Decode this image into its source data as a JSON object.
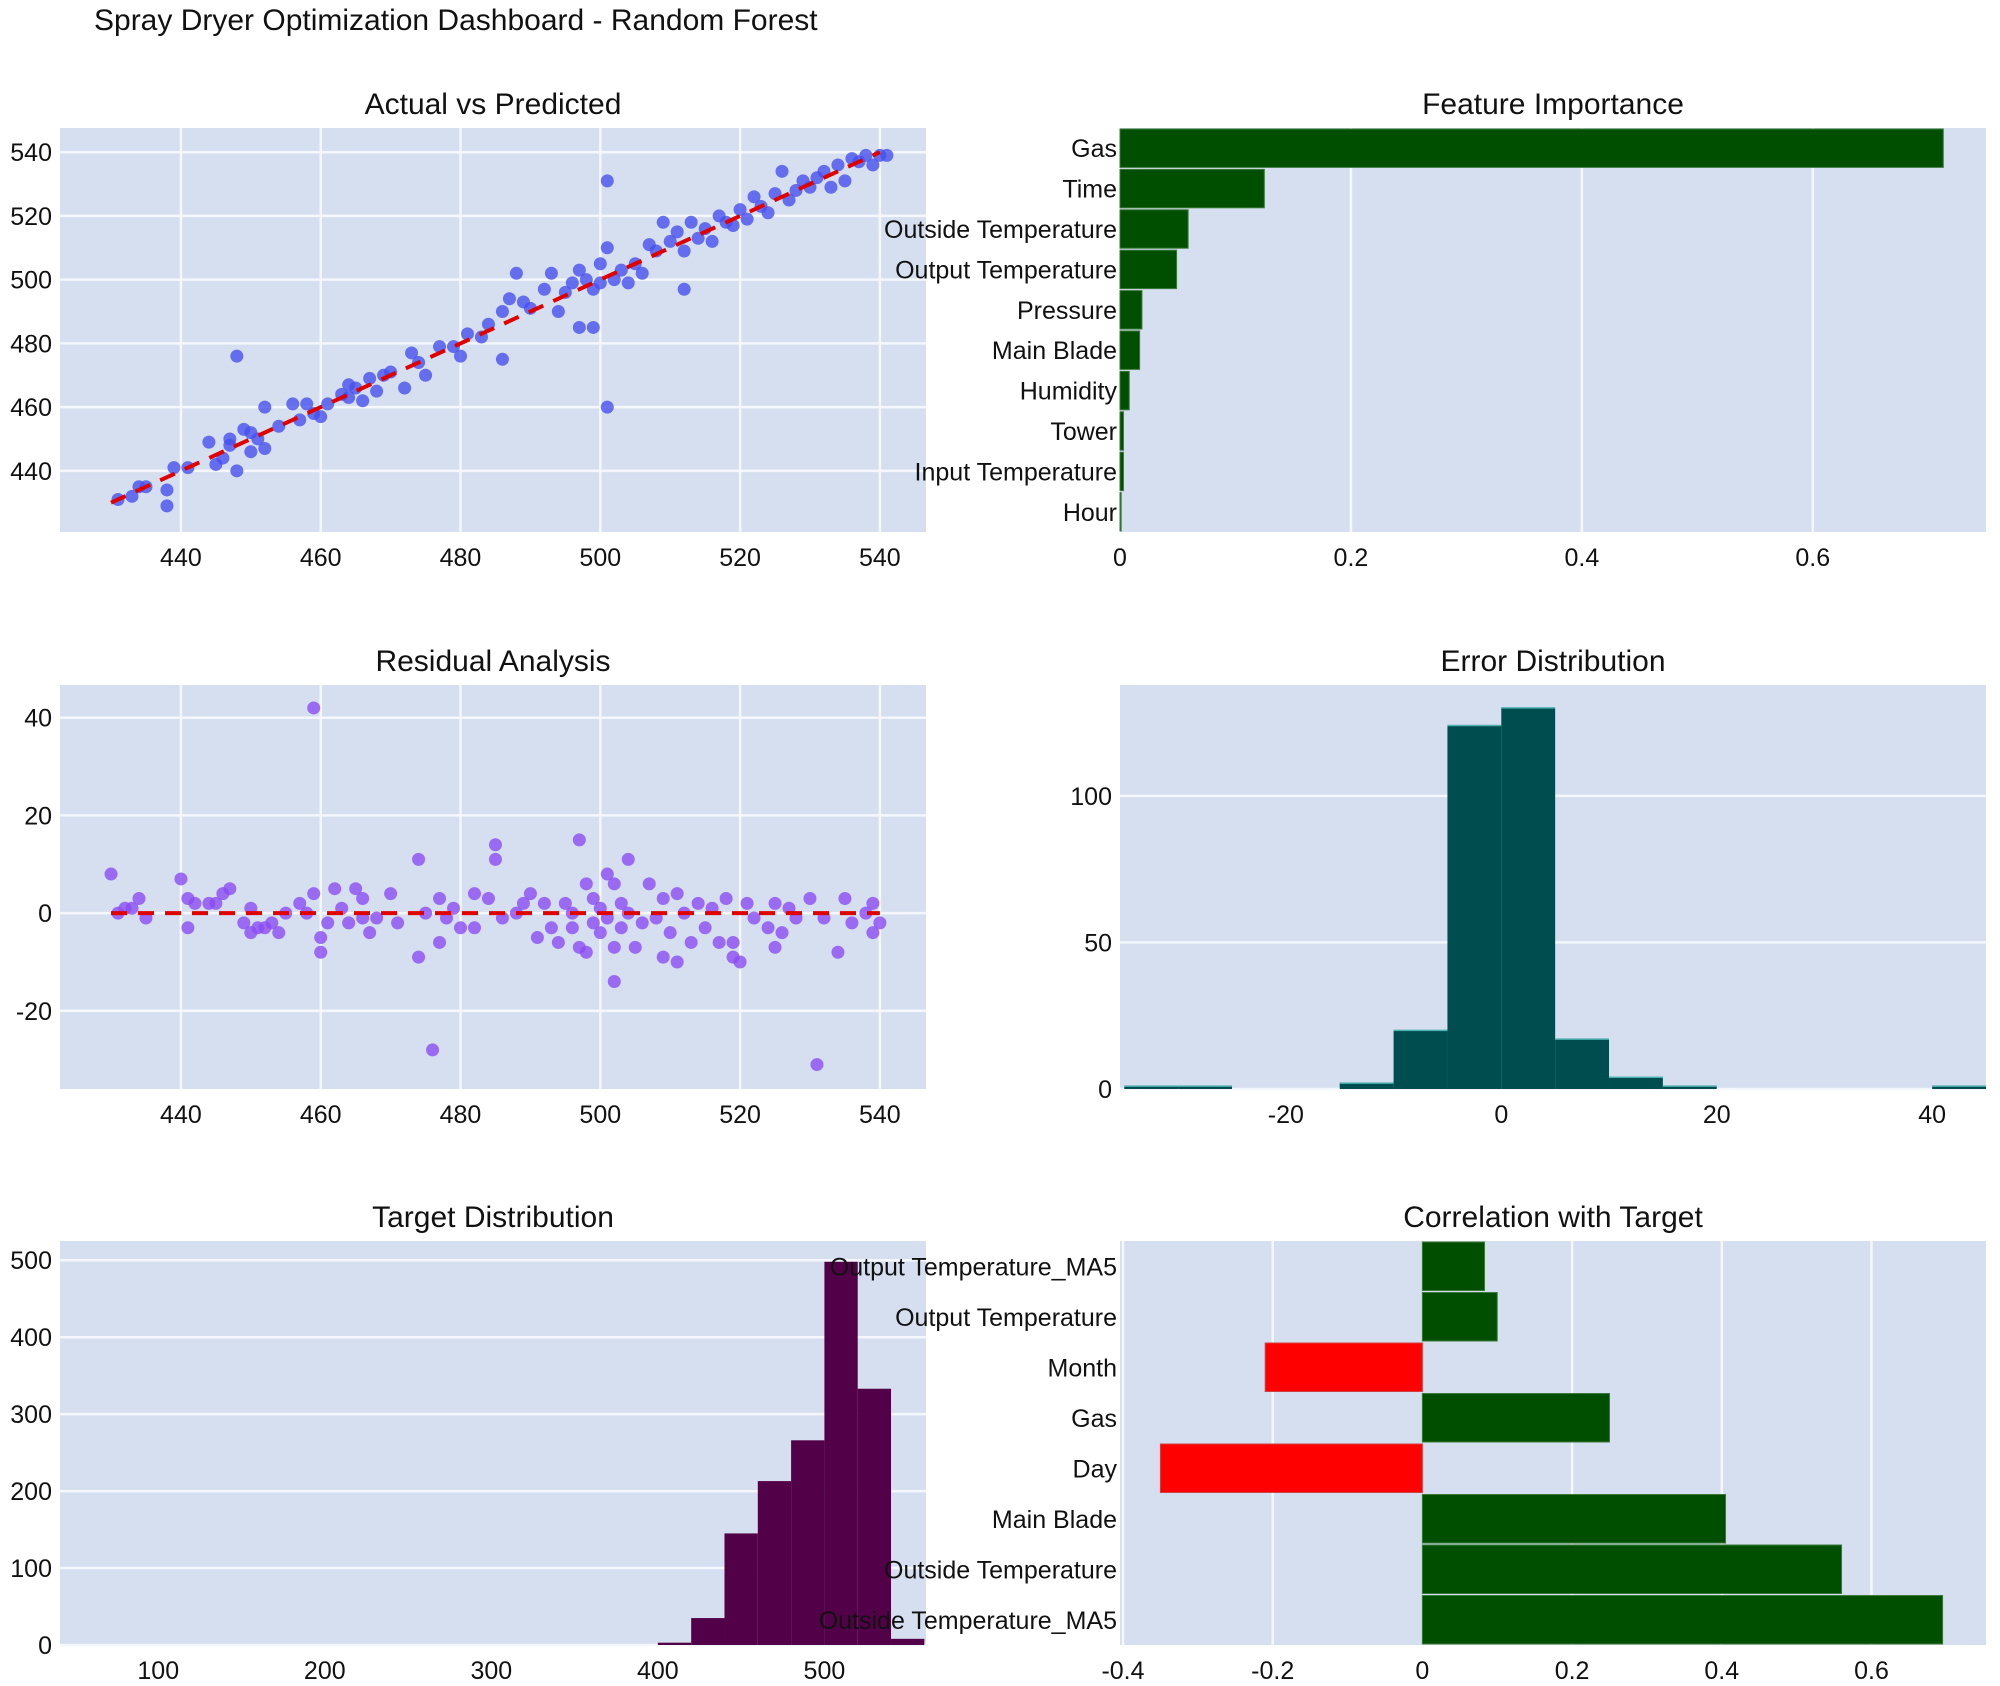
{
  "title": "Spray Dryer Optimization Dashboard - Random Forest",
  "colors": {
    "plot_bg": "#d6dfef",
    "grid": "#f4f7fc",
    "scatter": "#4650ec",
    "residual": "#8b4cf2",
    "ref_line": "#e00000",
    "importance_bar": "#004f00",
    "error_hist": "#004d50",
    "target_hist": "#520048",
    "corr_pos": "#004f00",
    "corr_neg": "#ff0000"
  },
  "chart_data": [
    {
      "id": "actual-vs-predicted",
      "type": "scatter",
      "title": "Actual vs Predicted",
      "xlim": [
        422.7,
        546.6
      ],
      "ylim": [
        420.8,
        547.6
      ],
      "xticks": [
        440,
        460,
        480,
        500,
        520,
        540
      ],
      "yticks": [
        440,
        460,
        480,
        500,
        520,
        540
      ],
      "grid": true,
      "reference_line": {
        "x": [
          430,
          540
        ],
        "y": [
          430,
          540
        ],
        "style": "dashed"
      },
      "points": [
        [
          431,
          431
        ],
        [
          433,
          432
        ],
        [
          434,
          435
        ],
        [
          435,
          435
        ],
        [
          438,
          434
        ],
        [
          438,
          429
        ],
        [
          439,
          441
        ],
        [
          441,
          441
        ],
        [
          444,
          449
        ],
        [
          445,
          442
        ],
        [
          446,
          444
        ],
        [
          447,
          450
        ],
        [
          447,
          448
        ],
        [
          448,
          476
        ],
        [
          448,
          440
        ],
        [
          449,
          453
        ],
        [
          450,
          452
        ],
        [
          450,
          446
        ],
        [
          451,
          450
        ],
        [
          452,
          460
        ],
        [
          452,
          447
        ],
        [
          454,
          454
        ],
        [
          456,
          461
        ],
        [
          457,
          456
        ],
        [
          458,
          461
        ],
        [
          459,
          458
        ],
        [
          460,
          457
        ],
        [
          461,
          461
        ],
        [
          463,
          464
        ],
        [
          464,
          467
        ],
        [
          464,
          463
        ],
        [
          465,
          466
        ],
        [
          466,
          462
        ],
        [
          467,
          469
        ],
        [
          468,
          465
        ],
        [
          469,
          470
        ],
        [
          470,
          471
        ],
        [
          472,
          466
        ],
        [
          473,
          477
        ],
        [
          474,
          474
        ],
        [
          475,
          470
        ],
        [
          477,
          479
        ],
        [
          479,
          479
        ],
        [
          480,
          476
        ],
        [
          481,
          483
        ],
        [
          483,
          482
        ],
        [
          484,
          486
        ],
        [
          486,
          475
        ],
        [
          486,
          490
        ],
        [
          487,
          494
        ],
        [
          488,
          502
        ],
        [
          489,
          493
        ],
        [
          490,
          491
        ],
        [
          492,
          497
        ],
        [
          493,
          502
        ],
        [
          494,
          490
        ],
        [
          495,
          496
        ],
        [
          496,
          499
        ],
        [
          497,
          485
        ],
        [
          497,
          503
        ],
        [
          498,
          500
        ],
        [
          499,
          485
        ],
        [
          499,
          497
        ],
        [
          500,
          505
        ],
        [
          500,
          499
        ],
        [
          501,
          531
        ],
        [
          501,
          460
        ],
        [
          501,
          510
        ],
        [
          502,
          500
        ],
        [
          503,
          503
        ],
        [
          504,
          499
        ],
        [
          505,
          505
        ],
        [
          506,
          502
        ],
        [
          507,
          511
        ],
        [
          508,
          509
        ],
        [
          509,
          518
        ],
        [
          510,
          512
        ],
        [
          511,
          515
        ],
        [
          512,
          497
        ],
        [
          512,
          509
        ],
        [
          513,
          518
        ],
        [
          514,
          513
        ],
        [
          515,
          516
        ],
        [
          516,
          512
        ],
        [
          517,
          520
        ],
        [
          518,
          518
        ],
        [
          519,
          517
        ],
        [
          520,
          522
        ],
        [
          521,
          519
        ],
        [
          522,
          526
        ],
        [
          523,
          523
        ],
        [
          524,
          521
        ],
        [
          525,
          527
        ],
        [
          526,
          534
        ],
        [
          527,
          525
        ],
        [
          528,
          528
        ],
        [
          529,
          531
        ],
        [
          530,
          529
        ],
        [
          531,
          532
        ],
        [
          532,
          534
        ],
        [
          533,
          529
        ],
        [
          534,
          536
        ],
        [
          535,
          531
        ],
        [
          536,
          538
        ],
        [
          537,
          537
        ],
        [
          538,
          539
        ],
        [
          539,
          536
        ],
        [
          540,
          539
        ],
        [
          541,
          539
        ]
      ]
    },
    {
      "id": "feature-importance",
      "type": "bar",
      "orientation": "horizontal",
      "title": "Feature Importance",
      "xlim": [
        0,
        0.75
      ],
      "xticks": [
        0,
        0.2,
        0.4,
        0.6
      ],
      "xticklabels": [
        "0",
        "0.2",
        "0.4",
        "0.6"
      ],
      "categories": [
        "Gas",
        "Time",
        "Outside Temperature",
        "Output Temperature",
        "Pressure",
        "Main Blade",
        "Humidity",
        "Tower",
        "Input Temperature",
        "Hour"
      ],
      "values": [
        0.713,
        0.125,
        0.059,
        0.049,
        0.019,
        0.017,
        0.008,
        0.003,
        0.003,
        0.001
      ]
    },
    {
      "id": "residual-analysis",
      "type": "scatter",
      "title": "Residual Analysis",
      "xlim": [
        422.7,
        546.6
      ],
      "ylim": [
        -36,
        46.7
      ],
      "xticks": [
        440,
        460,
        480,
        500,
        520,
        540
      ],
      "yticks": [
        -20,
        0,
        20,
        40
      ],
      "grid": true,
      "reference_line": {
        "x": [
          430,
          540
        ],
        "y": [
          0,
          0
        ],
        "style": "dashed"
      },
      "points": [
        [
          430,
          8
        ],
        [
          431,
          0
        ],
        [
          432,
          1
        ],
        [
          433,
          1
        ],
        [
          434,
          3
        ],
        [
          435,
          -1
        ],
        [
          440,
          7
        ],
        [
          441,
          3
        ],
        [
          441,
          -3
        ],
        [
          442,
          2
        ],
        [
          444,
          2
        ],
        [
          445,
          2
        ],
        [
          446,
          4
        ],
        [
          447,
          5
        ],
        [
          449,
          -2
        ],
        [
          450,
          -4
        ],
        [
          450,
          1
        ],
        [
          451,
          -3
        ],
        [
          452,
          -3
        ],
        [
          453,
          -2
        ],
        [
          454,
          -4
        ],
        [
          455,
          0
        ],
        [
          457,
          2
        ],
        [
          458,
          0
        ],
        [
          459,
          42
        ],
        [
          459,
          4
        ],
        [
          460,
          -8
        ],
        [
          460,
          -5
        ],
        [
          461,
          -2
        ],
        [
          462,
          5
        ],
        [
          463,
          1
        ],
        [
          464,
          -2
        ],
        [
          465,
          5
        ],
        [
          466,
          3
        ],
        [
          466,
          -1
        ],
        [
          467,
          -4
        ],
        [
          468,
          -1
        ],
        [
          470,
          4
        ],
        [
          471,
          -2
        ],
        [
          474,
          11
        ],
        [
          474,
          -9
        ],
        [
          475,
          0
        ],
        [
          476,
          -28
        ],
        [
          477,
          3
        ],
        [
          477,
          -6
        ],
        [
          478,
          -1
        ],
        [
          479,
          1
        ],
        [
          480,
          -3
        ],
        [
          482,
          4
        ],
        [
          482,
          -3
        ],
        [
          484,
          3
        ],
        [
          485,
          14
        ],
        [
          485,
          11
        ],
        [
          486,
          -1
        ],
        [
          488,
          0
        ],
        [
          489,
          2
        ],
        [
          490,
          4
        ],
        [
          491,
          -5
        ],
        [
          492,
          2
        ],
        [
          493,
          -3
        ],
        [
          494,
          -6
        ],
        [
          495,
          2
        ],
        [
          496,
          0
        ],
        [
          496,
          -3
        ],
        [
          497,
          15
        ],
        [
          497,
          -7
        ],
        [
          498,
          6
        ],
        [
          498,
          -8
        ],
        [
          499,
          3
        ],
        [
          499,
          -2
        ],
        [
          500,
          1
        ],
        [
          500,
          -4
        ],
        [
          501,
          8
        ],
        [
          501,
          -1
        ],
        [
          502,
          -14
        ],
        [
          502,
          6
        ],
        [
          502,
          -7
        ],
        [
          503,
          -3
        ],
        [
          503,
          2
        ],
        [
          504,
          11
        ],
        [
          504,
          0
        ],
        [
          505,
          -7
        ],
        [
          506,
          -2
        ],
        [
          507,
          6
        ],
        [
          508,
          -1
        ],
        [
          509,
          3
        ],
        [
          509,
          -9
        ],
        [
          510,
          -4
        ],
        [
          511,
          4
        ],
        [
          511,
          -10
        ],
        [
          512,
          0
        ],
        [
          513,
          -6
        ],
        [
          514,
          2
        ],
        [
          515,
          -3
        ],
        [
          516,
          1
        ],
        [
          517,
          -6
        ],
        [
          518,
          3
        ],
        [
          519,
          -9
        ],
        [
          519,
          -6
        ],
        [
          520,
          -10
        ],
        [
          521,
          2
        ],
        [
          522,
          -1
        ],
        [
          524,
          -3
        ],
        [
          525,
          2
        ],
        [
          525,
          -7
        ],
        [
          526,
          -4
        ],
        [
          527,
          1
        ],
        [
          528,
          -1
        ],
        [
          530,
          3
        ],
        [
          531,
          -31
        ],
        [
          532,
          -1
        ],
        [
          534,
          -8
        ],
        [
          535,
          3
        ],
        [
          536,
          -2
        ],
        [
          538,
          0
        ],
        [
          539,
          2
        ],
        [
          539,
          -4
        ],
        [
          540,
          -2
        ]
      ]
    },
    {
      "id": "error-distribution",
      "type": "bar",
      "subtype": "histogram",
      "title": "Error Distribution",
      "xlim": [
        -35.4,
        45
      ],
      "ylim": [
        0,
        137.8
      ],
      "xticks": [
        -20,
        0,
        20,
        40
      ],
      "yticks": [
        0,
        50,
        100
      ],
      "bin_edges": [
        -35,
        -30,
        -25,
        -20,
        -15,
        -10,
        -5,
        0,
        5,
        10,
        15,
        20,
        25,
        30,
        35,
        40,
        45
      ],
      "values": [
        1,
        1,
        0,
        0,
        2,
        20,
        124,
        130,
        17,
        4,
        1,
        0,
        0,
        0,
        0,
        1
      ]
    },
    {
      "id": "target-distribution",
      "type": "bar",
      "subtype": "histogram",
      "title": "Target Distribution",
      "xlim": [
        41,
        561
      ],
      "ylim": [
        0,
        525
      ],
      "xticks": [
        100,
        200,
        300,
        400,
        500
      ],
      "yticks": [
        0,
        100,
        200,
        300,
        400,
        500
      ],
      "bin_edges": [
        400,
        420,
        440,
        460,
        480,
        500,
        520,
        540,
        560
      ],
      "values": [
        3,
        35,
        145,
        213,
        266,
        498,
        333,
        8
      ]
    },
    {
      "id": "correlation-with-target",
      "type": "bar",
      "orientation": "horizontal",
      "title": "Correlation with Target",
      "xlim": [
        -0.404,
        0.753
      ],
      "xticks": [
        -0.4,
        -0.2,
        0,
        0.2,
        0.4,
        0.6
      ],
      "xticklabels": [
        "-0.4",
        "-0.2",
        "0",
        "0.2",
        "0.4",
        "0.6"
      ],
      "categories": [
        "Output Temperature_MA5",
        "Output Temperature",
        "Month",
        "Gas",
        "Day",
        "Main Blade",
        "Outside Temperature",
        "Outside Temperature_MA5"
      ],
      "values": [
        0.083,
        0.1,
        -0.21,
        0.25,
        -0.35,
        0.405,
        0.56,
        0.695
      ]
    }
  ]
}
